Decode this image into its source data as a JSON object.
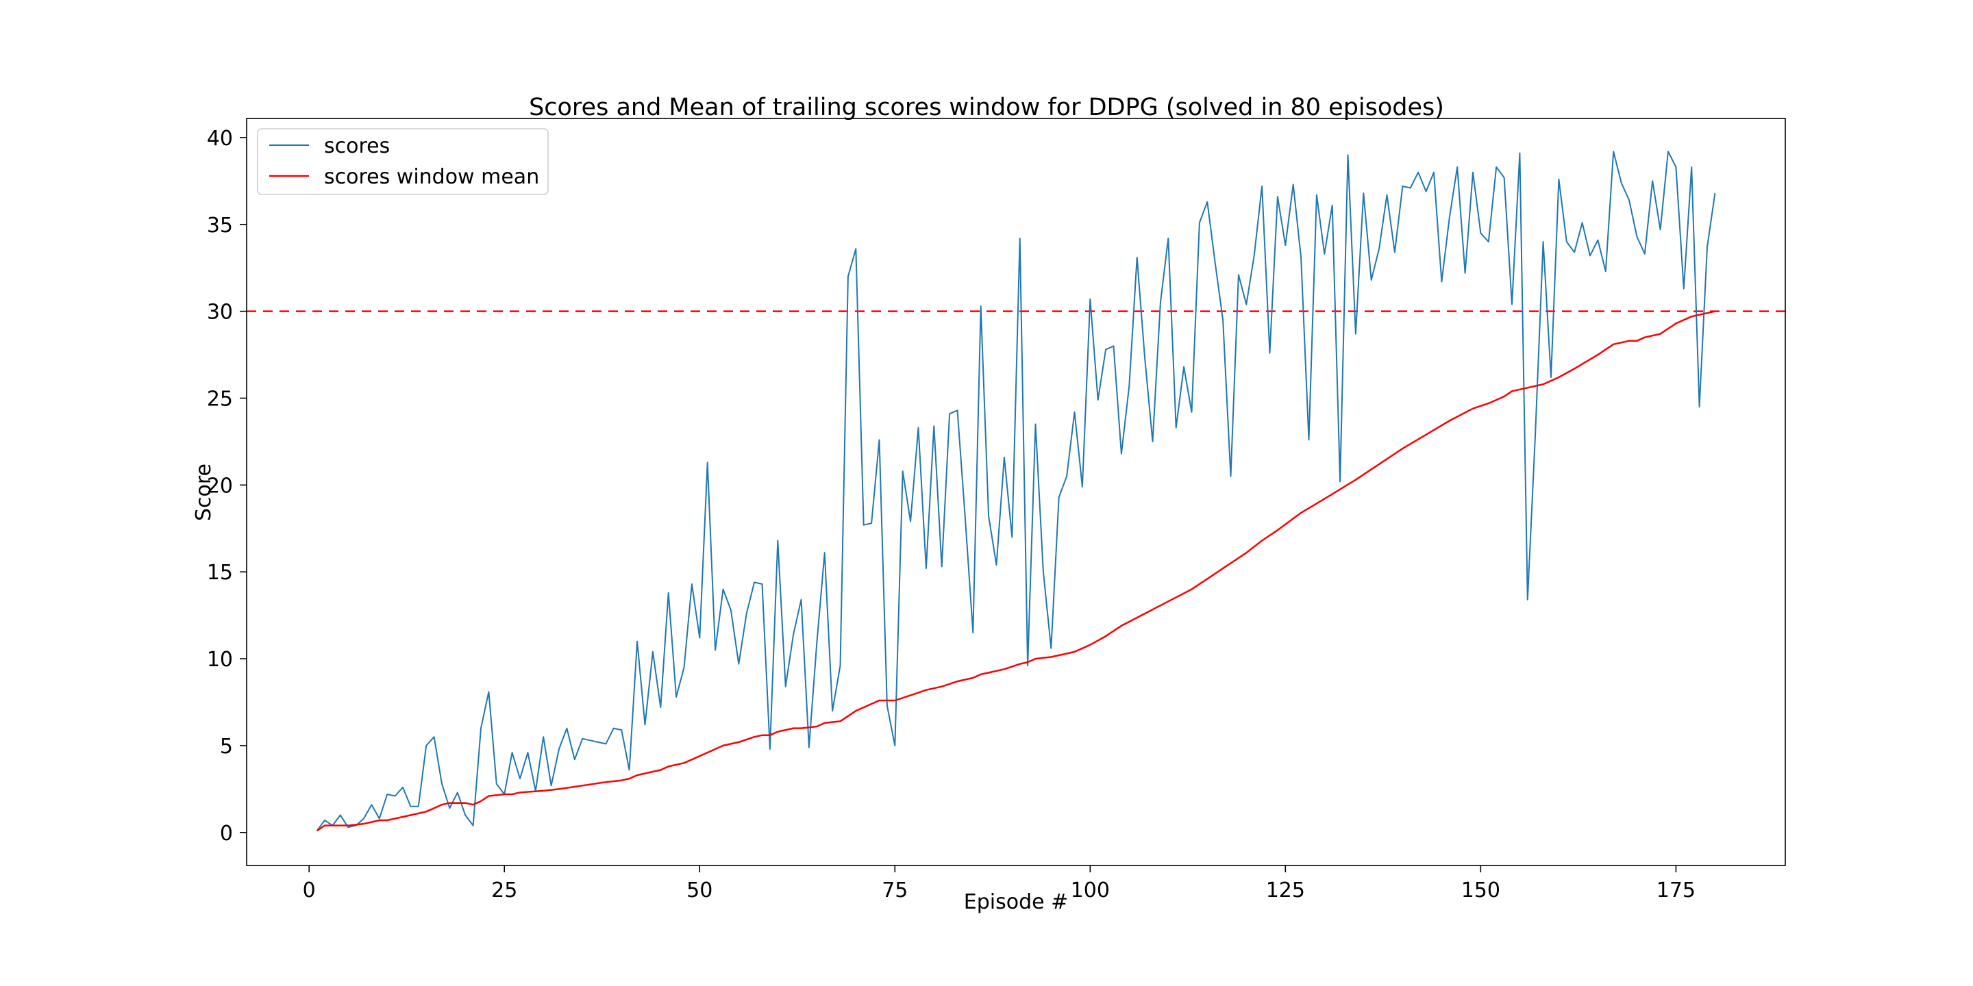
{
  "chart_data": {
    "type": "line",
    "title": "Scores and Mean of trailing scores window for DDPG (solved in 80 episodes)",
    "xlabel": "Episode #",
    "ylabel": "Score",
    "xlim": [
      -8,
      189
    ],
    "ylim": [
      -1.9,
      41.1
    ],
    "xticks": [
      0,
      25,
      50,
      75,
      100,
      125,
      150,
      175
    ],
    "yticks": [
      0,
      5,
      10,
      15,
      20,
      25,
      30,
      35,
      40
    ],
    "grid": false,
    "legend": {
      "position": "top-left"
    },
    "threshold": {
      "value": 30,
      "color": "#ff0000",
      "style": "dashed"
    },
    "series": [
      {
        "name": "scores",
        "color": "#1f77b4",
        "x": [
          1,
          2,
          3,
          4,
          5,
          6,
          7,
          8,
          9,
          10,
          11,
          12,
          13,
          14,
          15,
          16,
          17,
          18,
          19,
          20,
          21,
          22,
          23,
          24,
          25,
          26,
          27,
          28,
          29,
          30,
          31,
          32,
          33,
          34,
          35,
          36,
          37,
          38,
          39,
          40,
          41,
          42,
          43,
          44,
          45,
          46,
          47,
          48,
          49,
          50,
          51,
          52,
          53,
          54,
          55,
          56,
          57,
          58,
          59,
          60,
          61,
          62,
          63,
          64,
          65,
          66,
          67,
          68,
          69,
          70,
          71,
          72,
          73,
          74,
          75,
          76,
          77,
          78,
          79,
          80,
          81,
          82,
          83,
          84,
          85,
          86,
          87,
          88,
          89,
          90,
          91,
          92,
          93,
          94,
          95,
          96,
          97,
          98,
          99,
          100,
          101,
          102,
          103,
          104,
          105,
          106,
          107,
          108,
          109,
          110,
          111,
          112,
          113,
          114,
          115,
          116,
          117,
          118,
          119,
          120,
          121,
          122,
          123,
          124,
          125,
          126,
          127,
          128,
          129,
          130,
          131,
          132,
          133,
          134,
          135,
          136,
          137,
          138,
          139,
          140,
          141,
          142,
          143,
          144,
          145,
          146,
          147,
          148,
          149,
          150,
          151,
          152,
          153,
          154,
          155,
          156,
          157,
          158,
          159,
          160,
          161,
          162,
          163,
          164,
          165,
          166,
          167,
          168,
          169,
          170,
          171,
          172,
          173,
          174,
          175,
          176,
          177,
          178,
          179,
          180
        ],
        "y": [
          0.1,
          0.7,
          0.4,
          1.0,
          0.3,
          0.4,
          0.8,
          1.6,
          0.8,
          2.2,
          2.1,
          2.6,
          1.5,
          1.5,
          5.0,
          5.5,
          2.8,
          1.4,
          2.3,
          1.0,
          0.4,
          6.0,
          8.1,
          2.8,
          2.2,
          4.6,
          3.1,
          4.6,
          2.4,
          5.5,
          2.7,
          4.8,
          6.0,
          4.2,
          5.4,
          5.3,
          5.2,
          5.1,
          6.0,
          5.9,
          3.6,
          11.0,
          6.2,
          10.4,
          7.2,
          13.8,
          7.8,
          9.5,
          14.3,
          11.2,
          21.3,
          10.5,
          14.0,
          12.8,
          9.7,
          12.6,
          14.4,
          14.3,
          4.8,
          16.8,
          8.4,
          11.4,
          13.4,
          4.9,
          10.9,
          16.1,
          7.0,
          9.6,
          32.0,
          33.6,
          17.7,
          17.8,
          22.6,
          7.3,
          5.0,
          20.8,
          17.9,
          23.3,
          15.2,
          23.4,
          15.3,
          24.1,
          24.3,
          18.1,
          11.5,
          30.3,
          18.2,
          15.4,
          21.6,
          17.0,
          34.2,
          9.6,
          23.5,
          15.0,
          10.6,
          19.3,
          20.5,
          24.2,
          19.9,
          30.7,
          24.9,
          27.8,
          28.0,
          21.8,
          25.7,
          33.1,
          27.3,
          22.5,
          30.5,
          34.2,
          23.3,
          26.8,
          24.2,
          35.1,
          36.3,
          32.8,
          29.5,
          20.5,
          32.1,
          30.4,
          33.2,
          37.2,
          27.6,
          36.6,
          33.8,
          37.3,
          33.1,
          22.6,
          36.7,
          33.3,
          36.1,
          20.2,
          39.0,
          28.7,
          36.8,
          31.8,
          33.6,
          36.7,
          33.4,
          37.2,
          37.1,
          38.0,
          36.9,
          38.0,
          31.7,
          35.4,
          38.3,
          32.2,
          38.0,
          34.5,
          34.0,
          38.3,
          37.7,
          30.4,
          39.1,
          13.4,
          23.0,
          34.0,
          26.2,
          37.6,
          34.0,
          33.4,
          35.1,
          33.2,
          34.1,
          32.3,
          39.2,
          37.4,
          36.4,
          34.3,
          33.3,
          37.5,
          34.7,
          39.2,
          38.3,
          31.3,
          38.3,
          24.5,
          33.7,
          36.8
        ]
      },
      {
        "name": "scores window mean",
        "color": "#ff0000",
        "x": [
          1,
          2,
          3,
          5,
          7,
          9,
          10,
          12,
          14,
          15,
          16,
          17,
          18,
          19,
          20,
          21,
          22,
          23,
          25,
          26,
          27,
          30,
          32,
          35,
          38,
          40,
          41,
          42,
          44,
          45,
          46,
          48,
          50,
          51,
          53,
          55,
          57,
          58,
          59,
          60,
          62,
          63,
          65,
          66,
          68,
          69,
          70,
          72,
          73,
          75,
          77,
          79,
          80,
          81,
          83,
          84,
          85,
          86,
          87,
          89,
          91,
          92,
          93,
          95,
          97,
          98,
          100,
          102,
          104,
          107,
          110,
          113,
          115,
          117,
          120,
          122,
          124,
          127,
          130,
          134,
          137,
          140,
          143,
          146,
          149,
          151,
          153,
          154,
          155,
          156,
          157,
          158,
          160,
          162,
          165,
          167,
          168,
          169,
          170,
          171,
          173,
          174,
          175,
          176,
          177,
          179,
          180
        ],
        "y": [
          0.1,
          0.4,
          0.4,
          0.4,
          0.5,
          0.7,
          0.7,
          0.9,
          1.1,
          1.2,
          1.4,
          1.6,
          1.7,
          1.7,
          1.7,
          1.6,
          1.8,
          2.1,
          2.2,
          2.2,
          2.3,
          2.4,
          2.5,
          2.7,
          2.9,
          3.0,
          3.1,
          3.3,
          3.5,
          3.6,
          3.8,
          4.0,
          4.4,
          4.6,
          5.0,
          5.2,
          5.5,
          5.6,
          5.6,
          5.8,
          6.0,
          6.0,
          6.1,
          6.3,
          6.4,
          6.7,
          7.0,
          7.4,
          7.6,
          7.6,
          7.9,
          8.2,
          8.3,
          8.4,
          8.7,
          8.8,
          8.9,
          9.1,
          9.2,
          9.4,
          9.7,
          9.8,
          10.0,
          10.1,
          10.3,
          10.4,
          10.8,
          11.3,
          11.9,
          12.6,
          13.3,
          14.0,
          14.6,
          15.2,
          16.1,
          16.8,
          17.4,
          18.4,
          19.2,
          20.3,
          21.2,
          22.1,
          22.9,
          23.7,
          24.4,
          24.7,
          25.1,
          25.4,
          25.5,
          25.6,
          25.7,
          25.8,
          26.2,
          26.7,
          27.5,
          28.1,
          28.2,
          28.3,
          28.3,
          28.5,
          28.7,
          29.0,
          29.3,
          29.5,
          29.7,
          29.9,
          30.0
        ]
      }
    ]
  }
}
